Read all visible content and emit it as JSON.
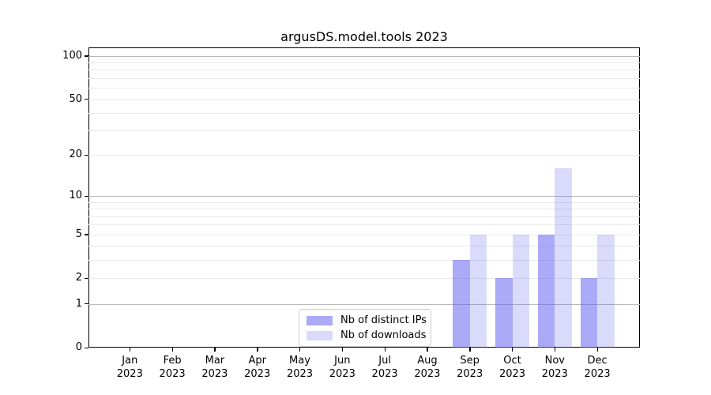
{
  "title": "argusDS.model.tools 2023",
  "colors": {
    "bar_distinct_ips": "rgba(85,85,238,0.5)",
    "bar_downloads": "rgba(85,85,238,0.22)",
    "grid_major": "#b9b9b9",
    "grid_minor": "#e9e9e9",
    "spine": "#000000"
  },
  "legend": {
    "items": [
      {
        "label": "Nb of distinct IPs",
        "swatch": "rgba(85,85,238,0.5)"
      },
      {
        "label": "Nb of downloads",
        "swatch": "rgba(85,85,238,0.22)"
      }
    ]
  },
  "chart_data": {
    "type": "bar",
    "title": "argusDS.model.tools 2023",
    "categories": [
      "Jan 2023",
      "Feb 2023",
      "Mar 2023",
      "Apr 2023",
      "May 2023",
      "Jun 2023",
      "Jul 2023",
      "Aug 2023",
      "Sep 2023",
      "Oct 2023",
      "Nov 2023",
      "Dec 2023"
    ],
    "x_tick_months": [
      "Jan",
      "Feb",
      "Mar",
      "Apr",
      "May",
      "Jun",
      "Jul",
      "Aug",
      "Sep",
      "Oct",
      "Nov",
      "Dec"
    ],
    "x_tick_year": "2023",
    "series": [
      {
        "name": "Nb of distinct IPs",
        "values": [
          0,
          0,
          0,
          0,
          0,
          0,
          0,
          0,
          3,
          2,
          5,
          2
        ]
      },
      {
        "name": "Nb of downloads",
        "values": [
          0,
          0,
          0,
          0,
          0,
          0,
          0,
          0,
          5,
          5,
          16,
          5
        ]
      }
    ],
    "xlabel": "",
    "ylabel": "",
    "yscale": "log1p",
    "ylim": [
      0,
      113
    ],
    "yticks": [
      0,
      1,
      2,
      5,
      10,
      20,
      50,
      100
    ],
    "gridlines": {
      "major": [
        1,
        10,
        100
      ],
      "minor": [
        2,
        3,
        4,
        5,
        6,
        7,
        8,
        9,
        20,
        30,
        40,
        50,
        60,
        70,
        80,
        90
      ]
    },
    "grid": "on",
    "legend_position": "lower center"
  }
}
